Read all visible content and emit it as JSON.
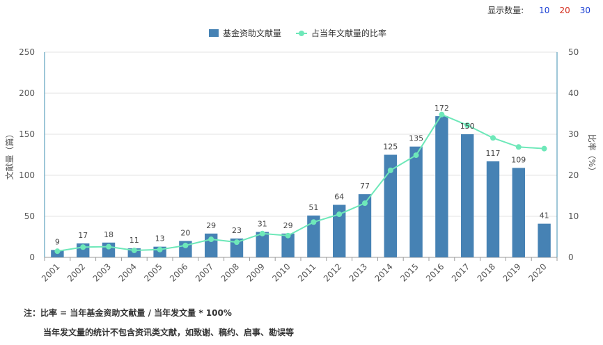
{
  "controls": {
    "label": "显示数量:",
    "options": [
      {
        "text": "10",
        "color": "#1a3fd4"
      },
      {
        "text": "20",
        "color": "#d42a1a"
      },
      {
        "text": "30",
        "color": "#1a3fd4"
      }
    ]
  },
  "chart_data": {
    "type": "bar+line",
    "categories": [
      "2001",
      "2002",
      "2003",
      "2004",
      "2005",
      "2006",
      "2007",
      "2008",
      "2009",
      "2010",
      "2011",
      "2012",
      "2013",
      "2014",
      "2015",
      "2016",
      "2017",
      "2018",
      "2019",
      "2020"
    ],
    "series": [
      {
        "name": "基金资助文献量",
        "type": "bar",
        "axis": "left",
        "color": "#4682b4",
        "values": [
          9,
          17,
          18,
          11,
          13,
          20,
          29,
          23,
          31,
          29,
          51,
          64,
          77,
          125,
          135,
          172,
          150,
          117,
          109,
          41
        ]
      },
      {
        "name": "占当年文献量的比率",
        "type": "line",
        "axis": "right",
        "color": "#6ee8b9",
        "values": [
          1.5,
          2.5,
          2.6,
          1.7,
          1.9,
          2.9,
          4.4,
          3.7,
          5.8,
          5.3,
          8.6,
          10.5,
          13.2,
          21.2,
          24.9,
          34.8,
          32.2,
          29.1,
          26.9,
          26.5
        ]
      }
    ],
    "ylabel": "文献量（篇）",
    "y2label": "比率（%）",
    "ylim": [
      0,
      250
    ],
    "y2lim": [
      0,
      50
    ],
    "yticks": [
      "0",
      "50",
      "100",
      "150",
      "200",
      "250"
    ],
    "y2ticks": [
      "0",
      "10",
      "20",
      "30",
      "40",
      "50"
    ],
    "legend_position": "top-center",
    "grid": true
  },
  "notes": {
    "line1": "注：比率 = 当年基金资助文献量 / 当年发文量 * 100%",
    "line2": "当年发文量的统计不包含资讯类文献，如致谢、稿约、启事、勘误等"
  }
}
